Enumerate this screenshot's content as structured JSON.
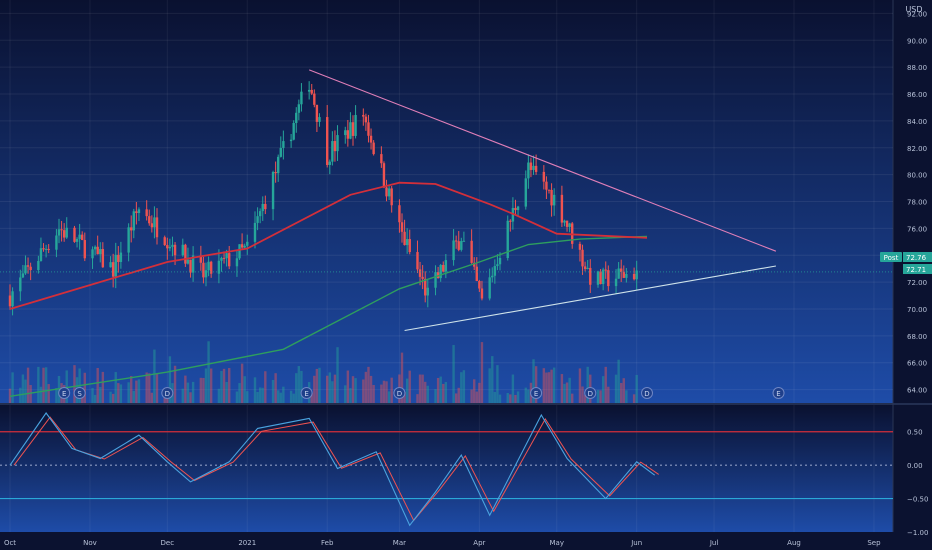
{
  "currency_label": "USD",
  "price_axis": {
    "min": 63,
    "max": 93,
    "ticks": [
      92,
      90,
      88,
      86,
      84,
      82,
      80,
      78,
      76,
      74,
      72,
      70,
      68,
      66,
      64
    ],
    "tick_labels": [
      "92.00",
      "90.00",
      "88.00",
      "86.00",
      "84.00",
      "82.00",
      "80.00",
      "78.00",
      "76.00",
      "74.00",
      "72.00",
      "70.00",
      "68.00",
      "66.00",
      "64.00"
    ]
  },
  "oscillator_axis": {
    "min": -1.0,
    "max": 0.9,
    "ticks": [
      0.5,
      0.0,
      -0.5,
      -1.0
    ],
    "tick_labels": [
      "0.50",
      "0.00",
      "−0.50",
      "−1.00"
    ],
    "upper_level": 0.5,
    "lower_level": -0.5
  },
  "time_axis": {
    "labels": [
      "Oct",
      "Nov",
      "Dec",
      "2021",
      "Feb",
      "Mar",
      "Apr",
      "May",
      "Jun",
      "Jul",
      "Aug",
      "Sep"
    ]
  },
  "price_badges": {
    "last_label": "Post",
    "last_value": "72.76",
    "second_value": "72.71"
  },
  "event_markers": {
    "earnings_letter": "E",
    "dividend_letter": "D",
    "split_letter": "S"
  },
  "colors": {
    "background_top": "#0a1130",
    "background_bottom": "#1e4ca8",
    "up": "#26a69a",
    "down": "#ef5350",
    "ma_slow": "#2e9e5e",
    "ma_fast": "#d32f3a",
    "trend_upper": "#e07fb8",
    "trend_lower": "#cfe3ea",
    "osc_line_a": "#4aa3df",
    "osc_line_b": "#ef5350",
    "osc_upper_level": "#d32f3a",
    "osc_lower_level": "#2aa8d8"
  },
  "chart_data": {
    "type": "candlestick",
    "x_axis": "date",
    "time_range": [
      "2020-10-01",
      "2021-09-01"
    ],
    "last_price": 72.76,
    "second_price": 72.71,
    "series": [
      {
        "kind": "candles",
        "summary_points": [
          {
            "date": "2020-10-01",
            "close": 71.0
          },
          {
            "date": "2020-10-20",
            "close": 76.0
          },
          {
            "date": "2020-11-10",
            "close": 73.0
          },
          {
            "date": "2020-11-20",
            "close": 77.5
          },
          {
            "date": "2020-12-15",
            "close": 72.5
          },
          {
            "date": "2021-01-01",
            "close": 74.5
          },
          {
            "date": "2021-01-25",
            "close": 87.0
          },
          {
            "date": "2021-02-01",
            "close": 81.5
          },
          {
            "date": "2021-02-15",
            "close": 84.5
          },
          {
            "date": "2021-03-01",
            "close": 76.0
          },
          {
            "date": "2021-03-12",
            "close": 71.0
          },
          {
            "date": "2021-03-25",
            "close": 75.5
          },
          {
            "date": "2021-04-02",
            "close": 70.5
          },
          {
            "date": "2021-04-20",
            "close": 80.5
          },
          {
            "date": "2021-05-01",
            "close": 78.0
          },
          {
            "date": "2021-05-15",
            "close": 72.0
          },
          {
            "date": "2021-06-01",
            "close": 72.76
          }
        ]
      },
      {
        "kind": "moving_average_fast",
        "points": [
          {
            "date": "2020-10-01",
            "value": 70.0
          },
          {
            "date": "2020-12-01",
            "value": 73.5
          },
          {
            "date": "2021-01-01",
            "value": 74.5
          },
          {
            "date": "2021-02-10",
            "value": 78.5
          },
          {
            "date": "2021-03-01",
            "value": 79.4
          },
          {
            "date": "2021-03-15",
            "value": 79.3
          },
          {
            "date": "2021-04-05",
            "value": 77.8
          },
          {
            "date": "2021-04-15",
            "value": 77.0
          },
          {
            "date": "2021-05-01",
            "value": 75.6
          },
          {
            "date": "2021-06-05",
            "value": 75.3
          }
        ]
      },
      {
        "kind": "moving_average_slow",
        "points": [
          {
            "date": "2020-10-01",
            "value": 63.5
          },
          {
            "date": "2020-12-01",
            "value": 65.3
          },
          {
            "date": "2021-01-15",
            "value": 67.0
          },
          {
            "date": "2021-03-01",
            "value": 71.5
          },
          {
            "date": "2021-04-01",
            "value": 73.5
          },
          {
            "date": "2021-04-20",
            "value": 74.8
          },
          {
            "date": "2021-05-10",
            "value": 75.2
          },
          {
            "date": "2021-06-05",
            "value": 75.4
          }
        ]
      },
      {
        "kind": "trendline_upper",
        "points": [
          {
            "date": "2021-01-25",
            "value": 87.8
          },
          {
            "date": "2021-07-25",
            "value": 74.3
          }
        ]
      },
      {
        "kind": "trendline_lower",
        "points": [
          {
            "date": "2021-03-03",
            "value": 68.4
          },
          {
            "date": "2021-07-25",
            "value": 73.2
          }
        ]
      },
      {
        "kind": "oscillator",
        "points": [
          {
            "date": "2020-10-01",
            "value": 0.0
          },
          {
            "date": "2020-10-15",
            "value": 0.78
          },
          {
            "date": "2020-10-25",
            "value": 0.25
          },
          {
            "date": "2020-11-05",
            "value": 0.1
          },
          {
            "date": "2020-11-20",
            "value": 0.45
          },
          {
            "date": "2020-12-01",
            "value": 0.05
          },
          {
            "date": "2020-12-10",
            "value": -0.25
          },
          {
            "date": "2020-12-25",
            "value": 0.05
          },
          {
            "date": "2021-01-05",
            "value": 0.55
          },
          {
            "date": "2021-01-25",
            "value": 0.7
          },
          {
            "date": "2021-02-05",
            "value": -0.05
          },
          {
            "date": "2021-02-20",
            "value": 0.2
          },
          {
            "date": "2021-03-05",
            "value": -0.9
          },
          {
            "date": "2021-03-15",
            "value": -0.4
          },
          {
            "date": "2021-03-25",
            "value": 0.15
          },
          {
            "date": "2021-04-05",
            "value": -0.75
          },
          {
            "date": "2021-04-25",
            "value": 0.75
          },
          {
            "date": "2021-05-05",
            "value": 0.1
          },
          {
            "date": "2021-05-20",
            "value": -0.5
          },
          {
            "date": "2021-06-01",
            "value": 0.05
          },
          {
            "date": "2021-06-08",
            "value": -0.15
          }
        ]
      }
    ],
    "oscillator_levels": [
      0.5,
      0.0,
      -0.5
    ],
    "volume": "histogram shown at bottom of price pane"
  }
}
